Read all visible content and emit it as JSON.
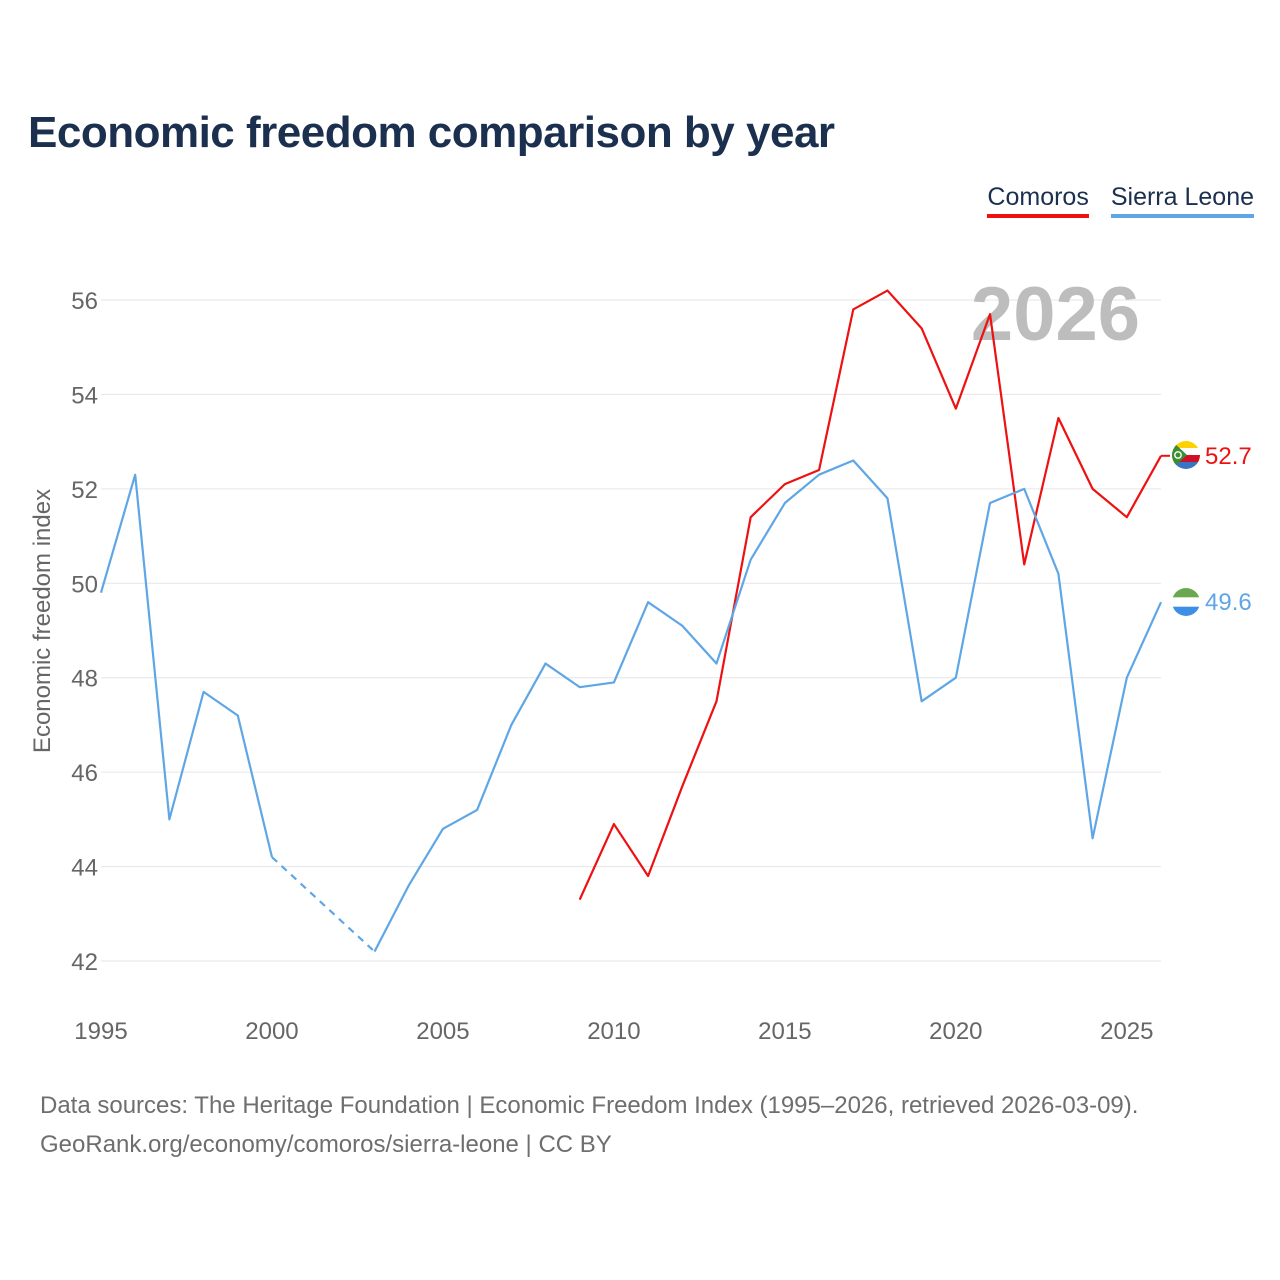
{
  "title": "Economic freedom comparison by year",
  "year_watermark": "2026",
  "footer": {
    "line1": "Data sources: The Heritage Foundation | Economic Freedom Index (1995–2026, retrieved 2026-03-09).",
    "line2": "GeoRank.org/economy/comoros/sierra-leone | CC BY"
  },
  "chart_data": {
    "type": "line",
    "title": "Economic freedom comparison by year",
    "xlabel": "",
    "ylabel": "Economic freedom index",
    "xlim": [
      1995,
      2026
    ],
    "ylim": [
      41,
      57
    ],
    "x_ticks": [
      1995,
      2000,
      2005,
      2010,
      2015,
      2020,
      2025
    ],
    "y_ticks": [
      42,
      44,
      46,
      48,
      50,
      52,
      54,
      56
    ],
    "grid": true,
    "legend_position": "top-right",
    "series": [
      {
        "name": "Comoros",
        "color": "#ee1111",
        "end_label": "52.7",
        "points": [
          [
            2009,
            43.3
          ],
          [
            2010,
            44.9
          ],
          [
            2011,
            43.8
          ],
          [
            2012,
            45.7
          ],
          [
            2013,
            47.5
          ],
          [
            2014,
            51.4
          ],
          [
            2015,
            52.1
          ],
          [
            2016,
            52.4
          ],
          [
            2017,
            55.8
          ],
          [
            2018,
            56.2
          ],
          [
            2019,
            55.4
          ],
          [
            2020,
            53.7
          ],
          [
            2021,
            55.7
          ],
          [
            2022,
            50.4
          ],
          [
            2023,
            53.5
          ],
          [
            2024,
            52.0
          ],
          [
            2025,
            51.4
          ],
          [
            2026,
            52.7
          ]
        ]
      },
      {
        "name": "Sierra Leone",
        "color": "#5fa6e6",
        "end_label": "49.6",
        "points": [
          [
            1995,
            49.8
          ],
          [
            1996,
            52.3
          ],
          [
            1997,
            45.0
          ],
          [
            1998,
            47.7
          ],
          [
            1999,
            47.2
          ],
          [
            2000,
            44.2
          ],
          [
            2003,
            42.2
          ],
          [
            2004,
            43.6
          ],
          [
            2005,
            44.8
          ],
          [
            2006,
            45.2
          ],
          [
            2007,
            47.0
          ],
          [
            2008,
            48.3
          ],
          [
            2009,
            47.8
          ],
          [
            2010,
            47.9
          ],
          [
            2011,
            49.6
          ],
          [
            2012,
            49.1
          ],
          [
            2013,
            48.3
          ],
          [
            2014,
            50.5
          ],
          [
            2015,
            51.7
          ],
          [
            2016,
            52.3
          ],
          [
            2017,
            52.6
          ],
          [
            2018,
            51.8
          ],
          [
            2019,
            47.5
          ],
          [
            2020,
            48.0
          ],
          [
            2021,
            51.7
          ],
          [
            2022,
            52.0
          ],
          [
            2023,
            50.2
          ],
          [
            2024,
            44.6
          ],
          [
            2025,
            48.0
          ],
          [
            2026,
            49.6
          ]
        ],
        "dashed_gaps": [
          [
            2000,
            2003
          ]
        ]
      }
    ]
  }
}
